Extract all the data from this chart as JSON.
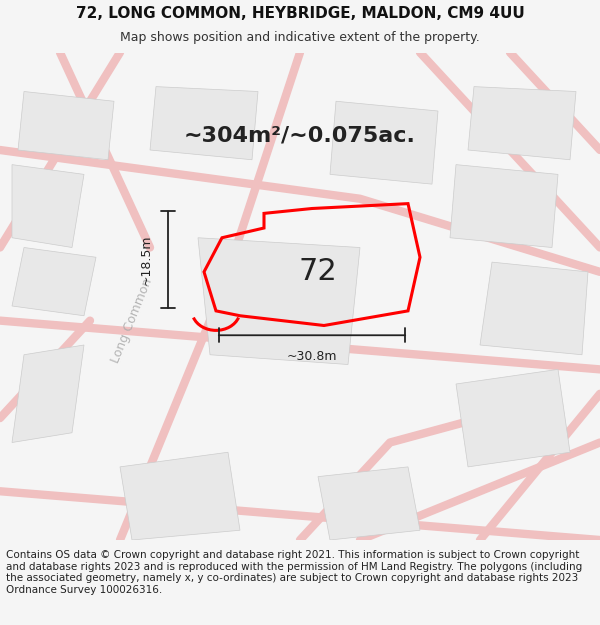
{
  "title_line1": "72, LONG COMMON, HEYBRIDGE, MALDON, CM9 4UU",
  "title_line2": "Map shows position and indicative extent of the property.",
  "area_text": "~304m²/~0.075ac.",
  "number_label": "72",
  "dim_width": "~30.8m",
  "dim_height": "~18.5m",
  "road_label": "Long Common",
  "footer_text": "Contains OS data © Crown copyright and database right 2021. This information is subject to Crown copyright and database rights 2023 and is reproduced with the permission of HM Land Registry. The polygons (including the associated geometry, namely x, y co-ordinates) are subject to Crown copyright and database rights 2023 Ordnance Survey 100026316.",
  "bg_color": "#f5f5f5",
  "map_bg": "#ffffff",
  "road_color": "#f0c0c0",
  "building_color": "#e8e8e8",
  "plot_outline_color": "#ff0000",
  "dim_line_color": "#222222",
  "title_fontsize": 11,
  "subtitle_fontsize": 9,
  "area_fontsize": 16,
  "number_fontsize": 22,
  "dim_fontsize": 9,
  "road_label_fontsize": 9,
  "footer_fontsize": 7.5
}
